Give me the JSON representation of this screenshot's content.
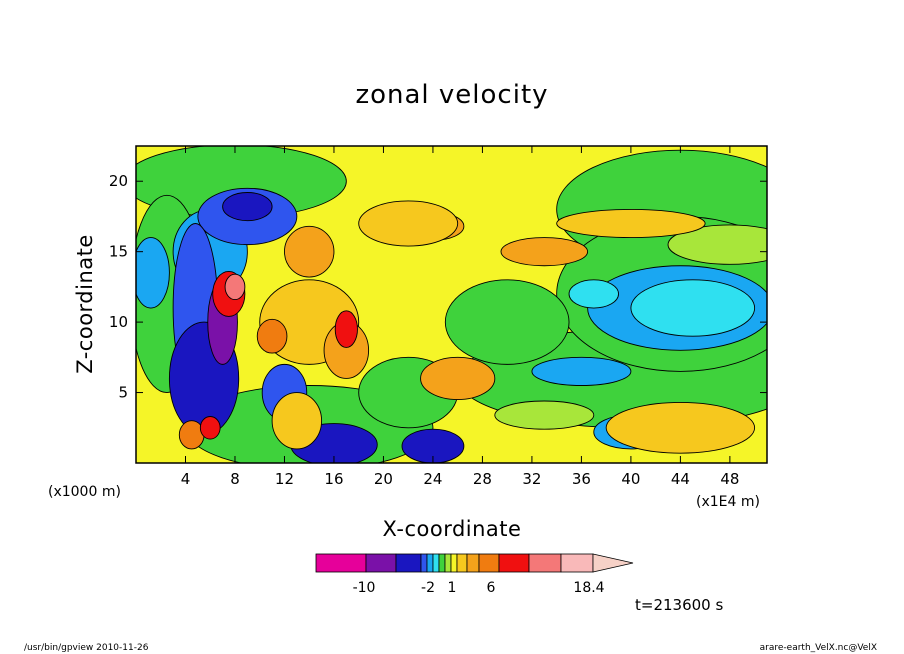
{
  "chart_data": {
    "type": "heatmap",
    "title": "zonal velocity",
    "xlabel": "X-coordinate",
    "ylabel": "Z-coordinate",
    "x_unit": "(x1E4 m)",
    "y_unit": "(x1000 m)",
    "x_ticks": [
      "4",
      "8",
      "12",
      "16",
      "20",
      "24",
      "28",
      "32",
      "36",
      "40",
      "44",
      "48"
    ],
    "y_ticks": [
      "5",
      "10",
      "15",
      "20"
    ],
    "xlim": [
      0,
      51
    ],
    "ylim": [
      0,
      22.5
    ],
    "colorbar": {
      "tick_labels": [
        "-10",
        "-2",
        "1",
        "6",
        "18.4"
      ],
      "colors": [
        "#e6009a",
        "#7a11a8",
        "#1a16c0",
        "#2f55ee",
        "#1aa7f2",
        "#2fe0f0",
        "#3fd23c",
        "#a8e63a",
        "#f5f528",
        "#f6c81e",
        "#f4a21b",
        "#f07c10",
        "#f01010",
        "#f47878",
        "#f9b9b9",
        "#f6d1c7"
      ]
    },
    "features": [
      {
        "x": 6.5,
        "z": 12,
        "sign": "positive",
        "desc": "strong positive core near x=6-8"
      },
      {
        "x": 5.5,
        "z": 9.5,
        "sign": "negative",
        "desc": "negative (blue) column near x=4-7"
      },
      {
        "x": 18,
        "z": 9.5,
        "sign": "positive",
        "desc": "positive core near x=18"
      },
      {
        "x": 42,
        "z": 10,
        "sign": "negative",
        "desc": "weak negative region x=33-51, z=7-13"
      },
      {
        "x": 25,
        "z": 17,
        "sign": "positive",
        "desc": "jet near z=17"
      }
    ],
    "grid": false,
    "legend": "colorbar-bottom"
  },
  "timestamp": "t=213600 s",
  "footer": {
    "left": "/usr/bin/gpview   2010-11-26",
    "right": "arare-earth_VelX.nc@VelX"
  }
}
